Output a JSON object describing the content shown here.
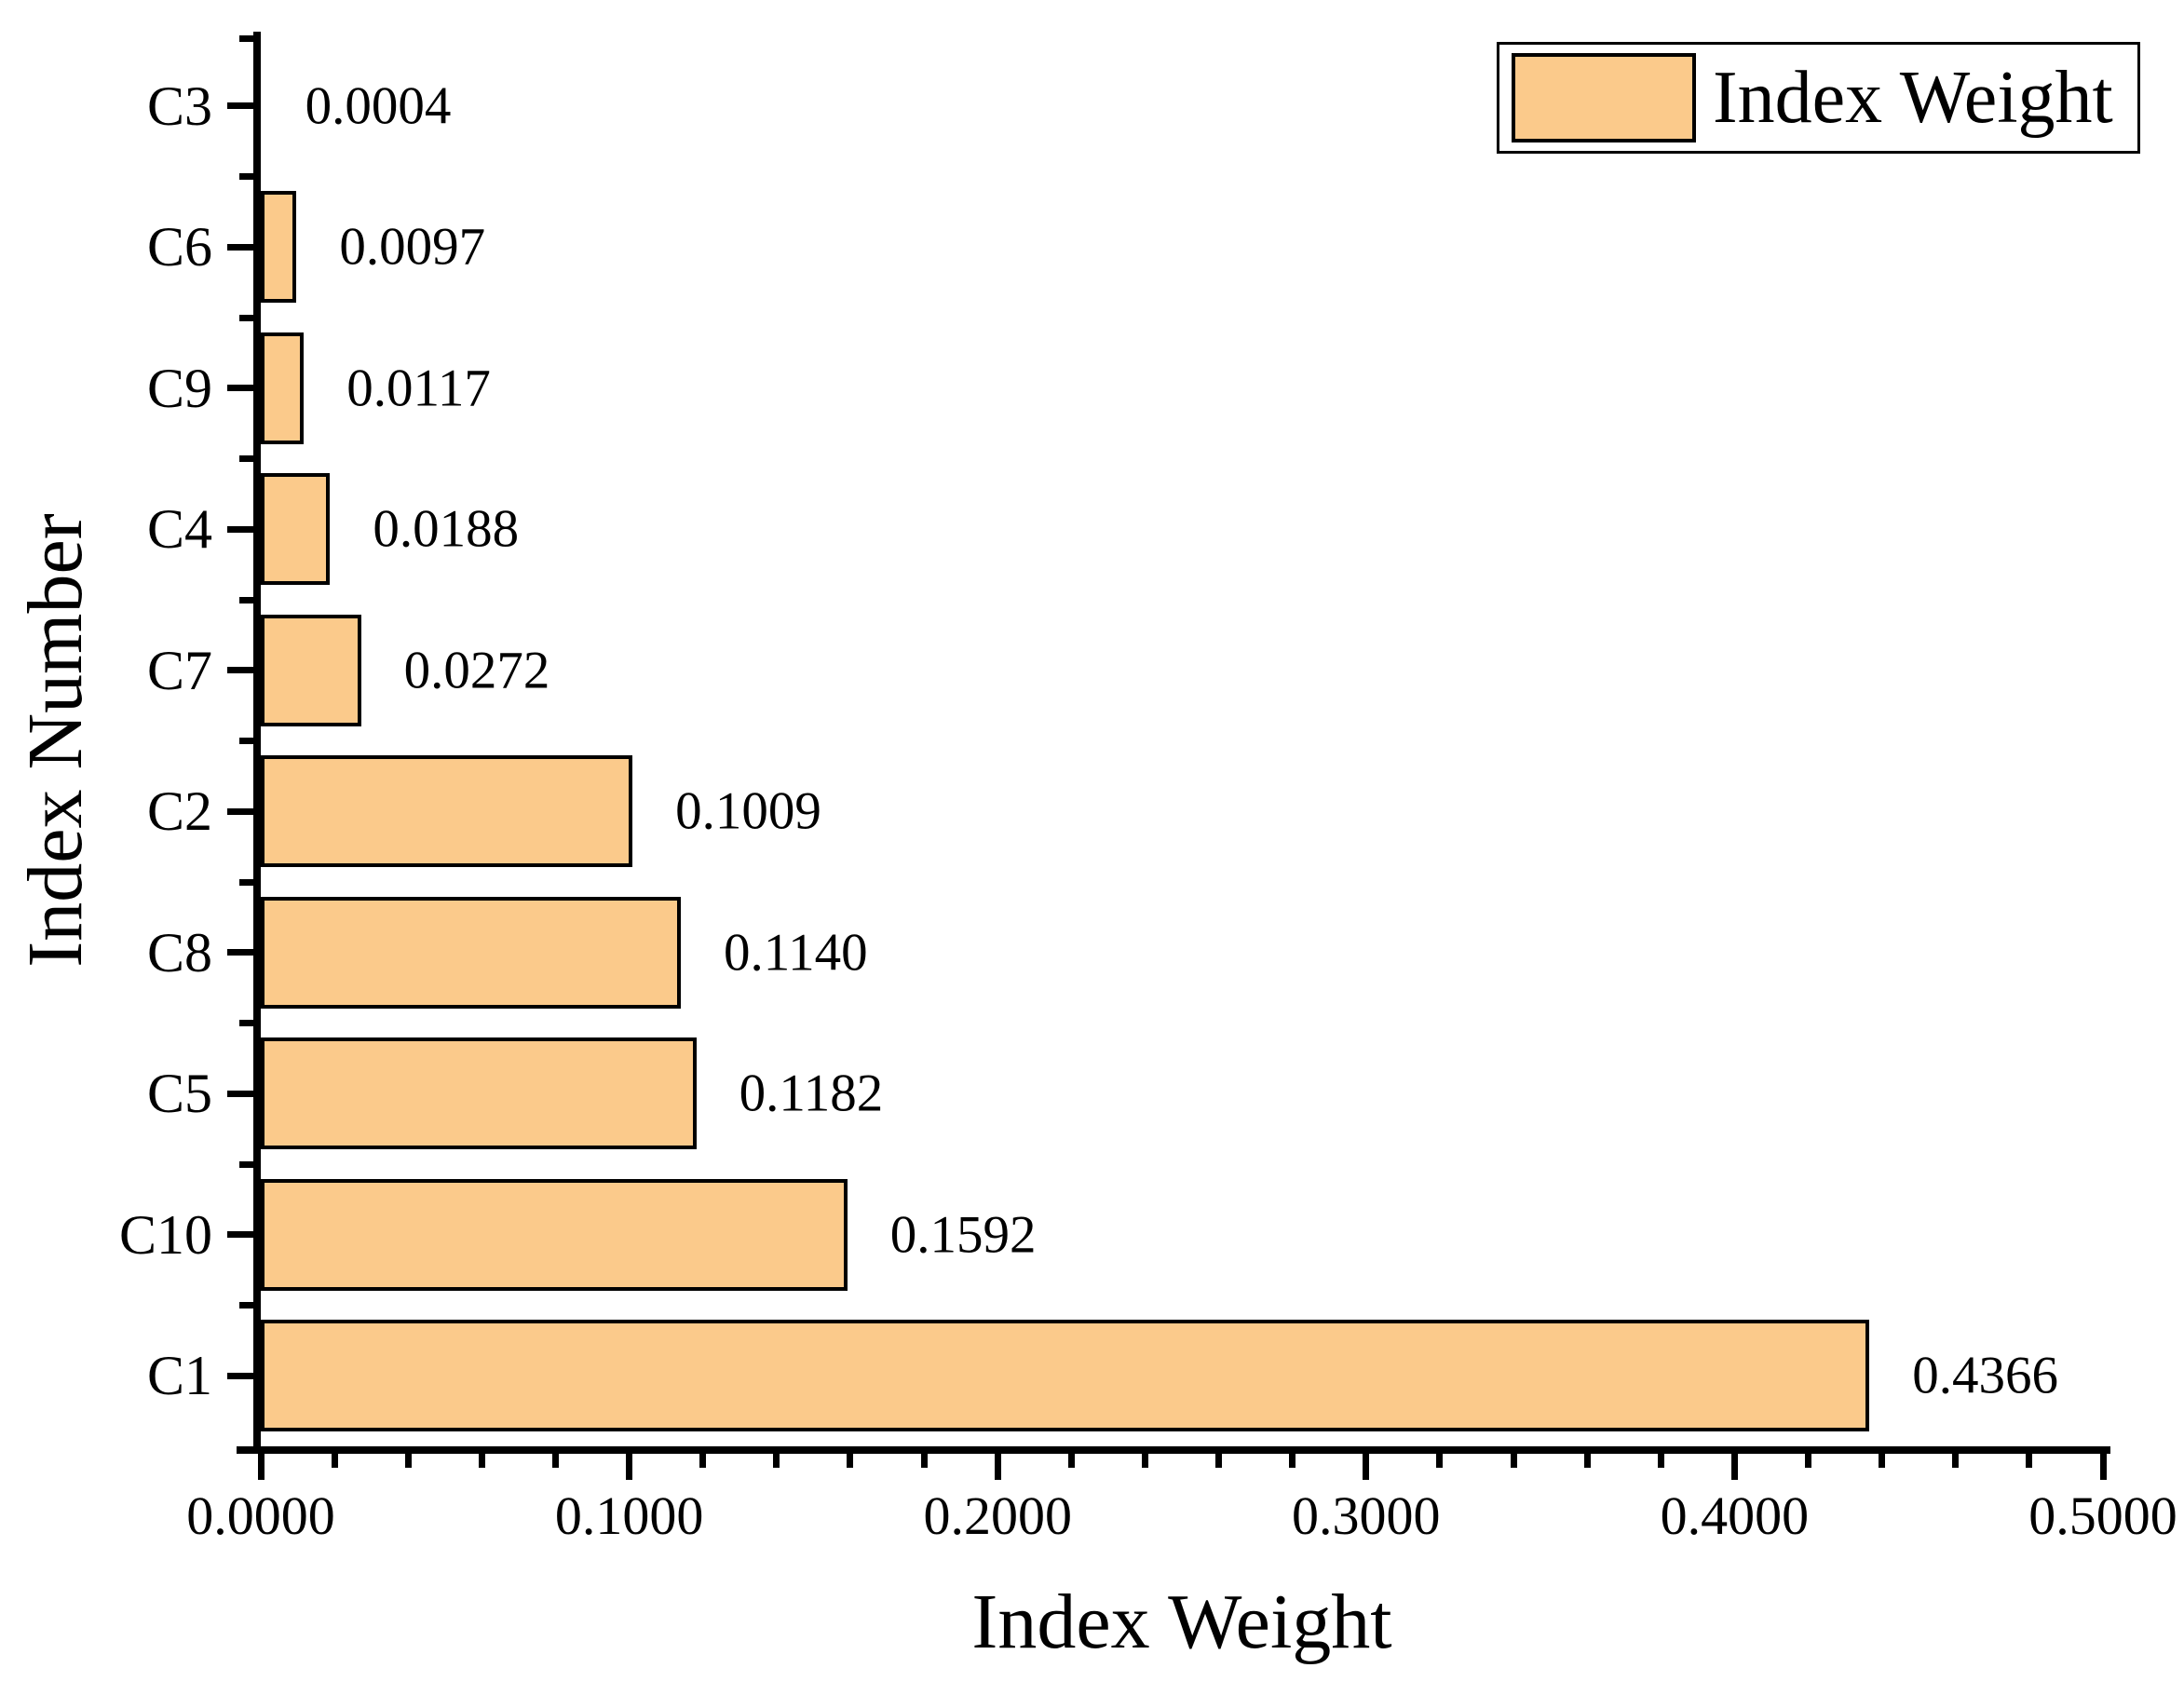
{
  "figure": {
    "background": "#ffffff",
    "text_color": "#000000"
  },
  "chart_data": {
    "type": "bar",
    "orientation": "horizontal",
    "title": "",
    "xlabel": "Index Weight",
    "ylabel": "Index Number",
    "categories_top_to_bottom": [
      "C3",
      "C6",
      "C9",
      "C4",
      "C7",
      "C2",
      "C8",
      "C5",
      "C10",
      "C1"
    ],
    "values": [
      0.0004,
      0.0097,
      0.0117,
      0.0188,
      0.0272,
      0.1009,
      0.114,
      0.1182,
      0.1592,
      0.4366
    ],
    "value_labels": [
      "0.0004",
      "0.0097",
      "0.0117",
      "0.0188",
      "0.0272",
      "0.1009",
      "0.1140",
      "0.1182",
      "0.1592",
      "0.4366"
    ],
    "xlim": [
      0,
      0.5
    ],
    "x_major_ticks": [
      0.0,
      0.1,
      0.2,
      0.3,
      0.4,
      0.5
    ],
    "x_tick_labels": [
      "0.0000",
      "0.1000",
      "0.2000",
      "0.3000",
      "0.4000",
      "0.5000"
    ],
    "x_minor_tick_step": 0.02,
    "grid": false,
    "bar_color": "#FBCA8B",
    "bar_border_color": "#000000",
    "axis_color": "#000000",
    "legend": {
      "position": "top-right",
      "entries": [
        {
          "label": "Index Weight",
          "swatch_color": "#FBCA8B"
        }
      ]
    }
  }
}
